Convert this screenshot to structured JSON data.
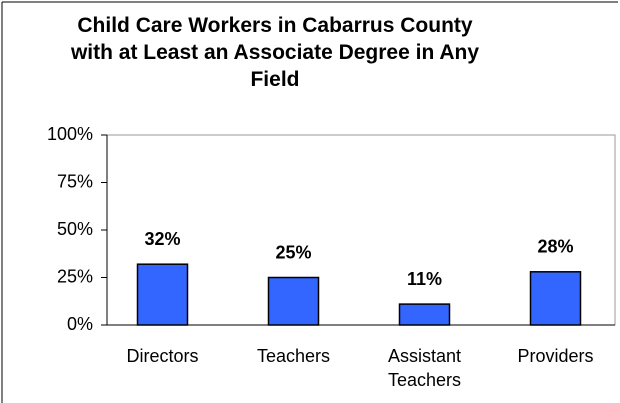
{
  "chart_data": {
    "type": "bar",
    "title": "Child Care Workers in Cabarrus County with at Least an Associate Degree in Any Field",
    "categories": [
      "Directors",
      "Teachers",
      "Assistant Teachers",
      "Providers"
    ],
    "values": [
      32,
      25,
      11,
      28
    ],
    "value_labels": [
      "32%",
      "25%",
      "11%",
      "28%"
    ],
    "color": "#3366ff",
    "ylim": [
      0,
      100
    ],
    "yticks": [
      {
        "value": 0,
        "label": "0%"
      },
      {
        "value": 25,
        "label": "25%"
      },
      {
        "value": 50,
        "label": "50%"
      },
      {
        "value": 75,
        "label": "75%"
      },
      {
        "value": 100,
        "label": "100%"
      }
    ],
    "grid": false
  }
}
